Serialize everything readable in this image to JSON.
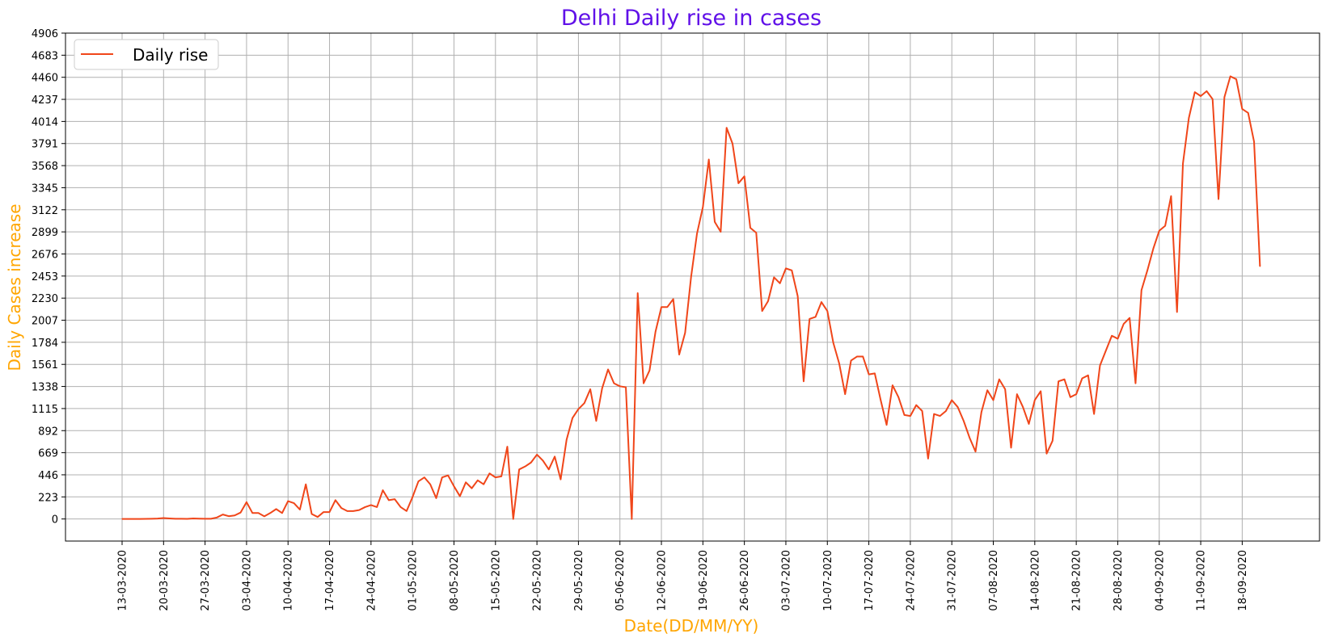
{
  "chart_data": {
    "type": "line",
    "title": "Delhi Daily rise in cases",
    "xlabel": "Date(DD/MM/YY)",
    "ylabel": "Daily Cases increase",
    "ylim": [
      -223,
      4906
    ],
    "yticks": [
      0,
      223,
      446,
      669,
      892,
      1115,
      1338,
      1561,
      1784,
      2007,
      2230,
      2453,
      2676,
      2899,
      3122,
      3345,
      3568,
      3791,
      4014,
      4237,
      4460,
      4683,
      4906
    ],
    "x_tick_labels": [
      "13-03-2020",
      "20-03-2020",
      "27-03-2020",
      "03-04-2020",
      "10-04-2020",
      "17-04-2020",
      "24-04-2020",
      "01-05-2020",
      "08-05-2020",
      "15-05-2020",
      "22-05-2020",
      "29-05-2020",
      "05-06-2020",
      "12-06-2020",
      "19-06-2020",
      "26-06-2020",
      "03-07-2020",
      "10-07-2020",
      "17-07-2020",
      "24-07-2020",
      "31-07-2020",
      "07-08-2020",
      "14-08-2020",
      "21-08-2020",
      "28-08-2020",
      "04-09-2020",
      "11-09-2020",
      "18-09-2020"
    ],
    "x_start_date": "13-03-2020",
    "grid": true,
    "legend_position": "top-left",
    "colors": {
      "title": "#6010E8",
      "axis_label": "#FFA500",
      "line": "#F0461A",
      "grid": "#B0B0B0"
    },
    "series": [
      {
        "name": "Daily rise",
        "values": [
          0,
          0,
          0,
          0,
          1,
          2,
          4,
          9,
          5,
          2,
          2,
          1,
          5,
          3,
          2,
          2,
          15,
          45,
          28,
          36,
          65,
          170,
          60,
          60,
          27,
          60,
          100,
          60,
          180,
          160,
          95,
          350,
          50,
          20,
          70,
          70,
          190,
          110,
          80,
          80,
          90,
          120,
          140,
          120,
          290,
          190,
          200,
          120,
          80,
          220,
          380,
          420,
          350,
          210,
          420,
          440,
          330,
          230,
          370,
          310,
          390,
          350,
          460,
          420,
          430,
          730,
          0,
          500,
          530,
          570,
          650,
          590,
          500,
          630,
          400,
          800,
          1020,
          1110,
          1170,
          1310,
          990,
          1320,
          1510,
          1370,
          1340,
          1330,
          0,
          2280,
          1370,
          1500,
          1890,
          2140,
          2140,
          2220,
          1660,
          1880,
          2440,
          2880,
          3150,
          3630,
          3000,
          2900,
          3950,
          3790,
          3390,
          3460,
          2940,
          2890,
          2100,
          2200,
          2440,
          2380,
          2530,
          2510,
          2250,
          1390,
          2020,
          2040,
          2190,
          2100,
          1780,
          1570,
          1260,
          1600,
          1640,
          1640,
          1460,
          1470,
          1200,
          950,
          1350,
          1230,
          1050,
          1040,
          1150,
          1090,
          610,
          1060,
          1040,
          1090,
          1200,
          1130,
          990,
          820,
          680,
          1080,
          1300,
          1200,
          1410,
          1310,
          720,
          1260,
          1130,
          960,
          1200,
          1290,
          660,
          790,
          1390,
          1410,
          1230,
          1260,
          1420,
          1450,
          1060,
          1550,
          1700,
          1850,
          1820,
          1970,
          2030,
          1370,
          2310,
          2510,
          2730,
          2910,
          2960,
          3260,
          2090,
          3590,
          4050,
          4310,
          4270,
          4320,
          4240,
          3230,
          4260,
          4470,
          4440,
          4140,
          4100,
          3810,
          2550
        ]
      }
    ]
  }
}
